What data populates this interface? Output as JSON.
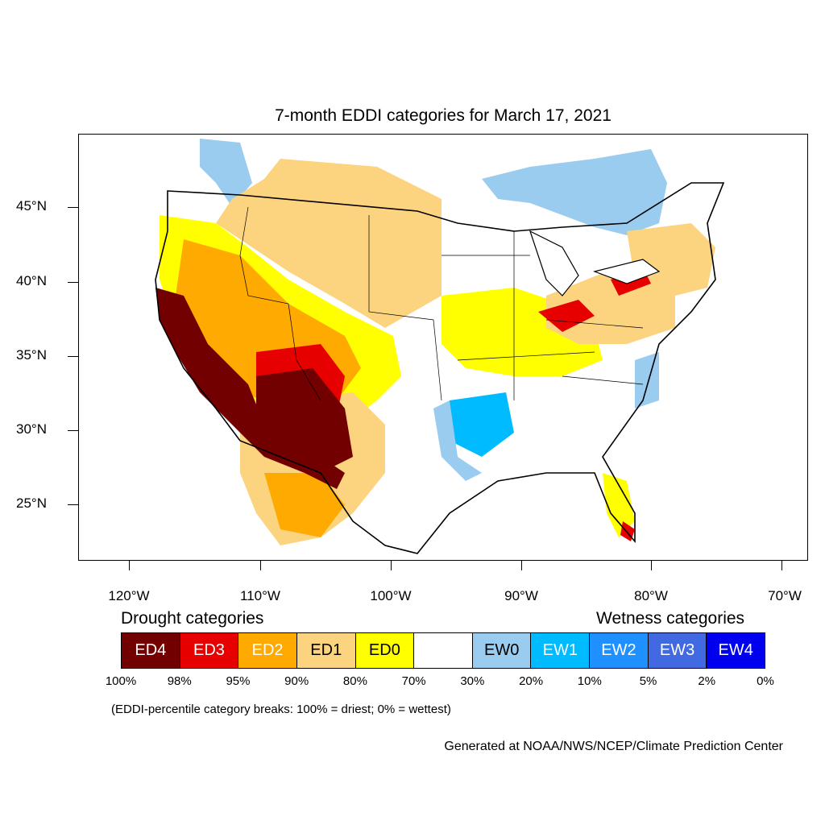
{
  "title": "7-month EDDI categories for March 17, 2021",
  "lat_labels": [
    "45°N",
    "40°N",
    "35°N",
    "30°N",
    "25°N"
  ],
  "lon_labels": [
    "120°W",
    "110°W",
    "100°W",
    "90°W",
    "80°W",
    "70°W"
  ],
  "legend": {
    "drought_heading": "Drought categories",
    "wetness_heading": "Wetness categories",
    "categories": [
      {
        "label": "ED4",
        "color": "#730000"
      },
      {
        "label": "ED3",
        "color": "#e60000"
      },
      {
        "label": "ED2",
        "color": "#ffaa00"
      },
      {
        "label": "ED1",
        "color": "#fcd37f"
      },
      {
        "label": "ED0",
        "color": "#ffff00"
      },
      {
        "label": "",
        "color": "#ffffff"
      },
      {
        "label": "EW0",
        "color": "#99ccee"
      },
      {
        "label": "EW1",
        "color": "#00bbff"
      },
      {
        "label": "EW2",
        "color": "#1e90ff"
      },
      {
        "label": "EW3",
        "color": "#4169e1"
      },
      {
        "label": "EW4",
        "color": "#0000ee"
      }
    ],
    "breaks": [
      "100%",
      "98%",
      "95%",
      "90%",
      "80%",
      "70%",
      "30%",
      "20%",
      "10%",
      "5%",
      "2%",
      "0%"
    ],
    "note": "(EDDI-percentile category breaks: 100% = driest; 0% = wettest)"
  },
  "credit": "Generated at NOAA/NWS/NCEP/Climate Prediction Center"
}
